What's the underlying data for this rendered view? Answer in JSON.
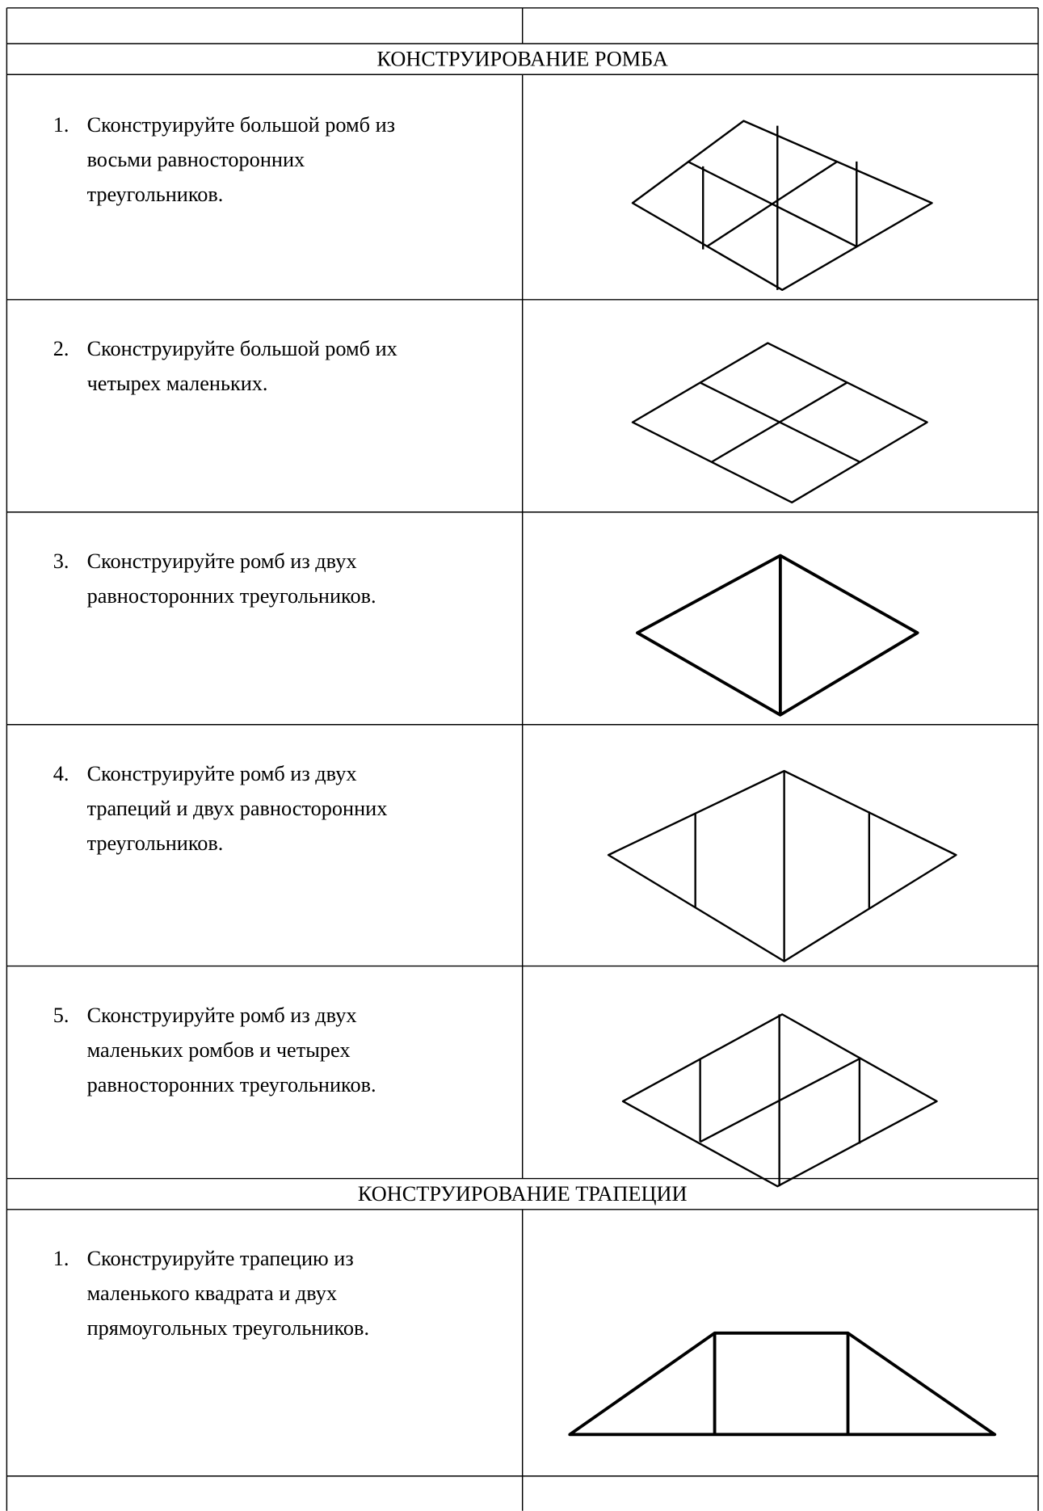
{
  "sections": [
    {
      "title": "КОНСТРУИРОВАНИЕ РОМБА",
      "items": [
        {
          "number": "1.",
          "lines": [
            "Сконструируйте большой ромб из",
            "восьми равносторонних",
            "треугольников."
          ]
        },
        {
          "number": "2.",
          "lines": [
            "Сконструируйте большой ромб их",
            "четырех маленьких."
          ]
        },
        {
          "number": "3.",
          "lines": [
            "Сконструируйте ромб из двух",
            "равносторонних треугольников."
          ]
        },
        {
          "number": "4.",
          "lines": [
            "Сконструируйте ромб из двух",
            "трапеций и двух равносторонних",
            "треугольников."
          ]
        },
        {
          "number": "5.",
          "lines": [
            "Сконструируйте ромб из двух",
            "маленьких ромбов и четырех",
            "равносторонних треугольников."
          ]
        }
      ]
    },
    {
      "title": "КОНСТРУИРОВАНИЕ ТРАПЕЦИИ",
      "items": [
        {
          "number": "1.",
          "lines": [
            "Сконструируйте трапецию из",
            "маленького квадрата и двух",
            "прямоугольных треугольников."
          ]
        }
      ]
    }
  ]
}
